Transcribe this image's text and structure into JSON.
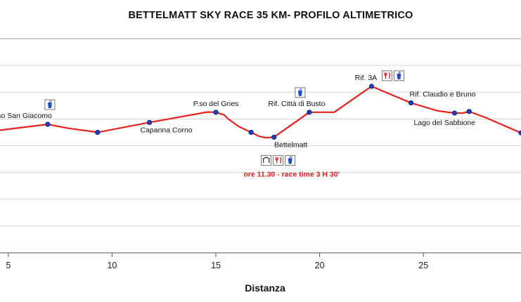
{
  "chart_data": {
    "type": "line",
    "title": "BETTELMATT SKY RACE 35 KM- PROFILO ALTIMETRICO",
    "xlabel": "Distanza",
    "ylabel": "",
    "xlim": [
      4.6,
      29.7
    ],
    "x_ticks": [
      5,
      10,
      15,
      20,
      25
    ],
    "ylim": [
      0,
      8
    ],
    "y_gridlines": [
      1,
      2,
      3,
      4,
      5,
      6,
      7
    ],
    "grid": "horizontal",
    "line_color": "#e8211d",
    "marker_color": "#1b3fbf",
    "series": [
      {
        "points": [
          {
            "x": 4.6,
            "y": 4.58
          },
          {
            "x": 6.9,
            "y": 4.8
          },
          {
            "x": 7.9,
            "y": 4.65
          },
          {
            "x": 9.3,
            "y": 4.5
          },
          {
            "x": 11.8,
            "y": 4.87
          },
          {
            "x": 14.6,
            "y": 5.26
          },
          {
            "x": 15.0,
            "y": 5.25
          },
          {
            "x": 15.4,
            "y": 5.15
          },
          {
            "x": 15.6,
            "y": 5.0
          },
          {
            "x": 16.1,
            "y": 4.72
          },
          {
            "x": 16.7,
            "y": 4.5
          },
          {
            "x": 17.1,
            "y": 4.35
          },
          {
            "x": 17.4,
            "y": 4.3
          },
          {
            "x": 17.8,
            "y": 4.32
          },
          {
            "x": 19.5,
            "y": 5.25
          },
          {
            "x": 20.7,
            "y": 5.25
          },
          {
            "x": 22.5,
            "y": 6.22
          },
          {
            "x": 24.4,
            "y": 5.6
          },
          {
            "x": 25.7,
            "y": 5.3
          },
          {
            "x": 26.5,
            "y": 5.22
          },
          {
            "x": 26.9,
            "y": 5.22
          },
          {
            "x": 27.2,
            "y": 5.28
          },
          {
            "x": 28.0,
            "y": 5.05
          },
          {
            "x": 29.4,
            "y": 4.58
          },
          {
            "x": 29.7,
            "y": 4.48
          }
        ],
        "markers": [
          {
            "x": 6.9,
            "y": 4.8
          },
          {
            "x": 9.3,
            "y": 4.5
          },
          {
            "x": 11.8,
            "y": 4.87
          },
          {
            "x": 15.0,
            "y": 5.25
          },
          {
            "x": 16.7,
            "y": 4.5
          },
          {
            "x": 17.8,
            "y": 4.32
          },
          {
            "x": 19.5,
            "y": 5.25
          },
          {
            "x": 22.5,
            "y": 6.22
          },
          {
            "x": 24.4,
            "y": 5.6
          },
          {
            "x": 26.5,
            "y": 5.22
          },
          {
            "x": 27.2,
            "y": 5.28
          },
          {
            "x": 29.7,
            "y": 4.48
          }
        ]
      }
    ],
    "waypoints": [
      {
        "label": "P.so San Giacomo",
        "x": 6.9,
        "label_anchor": "end",
        "icons": [
          "water-icon"
        ]
      },
      {
        "label": "Capanna Corno",
        "x": 11.8,
        "icons": []
      },
      {
        "label": "P.so del Gries",
        "x": 15.0,
        "icons": []
      },
      {
        "label": "Bettelmatt",
        "x": 17.8,
        "icons": [
          "shelter-icon",
          "food-icon",
          "water-icon"
        ]
      },
      {
        "label": "Rif. Città di Busto",
        "x": 19.5,
        "icons": [
          "water-icon"
        ]
      },
      {
        "label": "Rif. 3A",
        "x": 22.5,
        "icons": [
          "food-icon",
          "water-icon"
        ]
      },
      {
        "label": "Rif. Claudio e Bruno",
        "x": 24.4,
        "icons": []
      },
      {
        "label": "Lago del Sabbione",
        "x": 26.5,
        "icons": []
      }
    ],
    "annotations": [
      {
        "text": "ore 11.30 - race time 3 H 30'",
        "x": 17.8,
        "color": "#e01b1b"
      }
    ]
  }
}
